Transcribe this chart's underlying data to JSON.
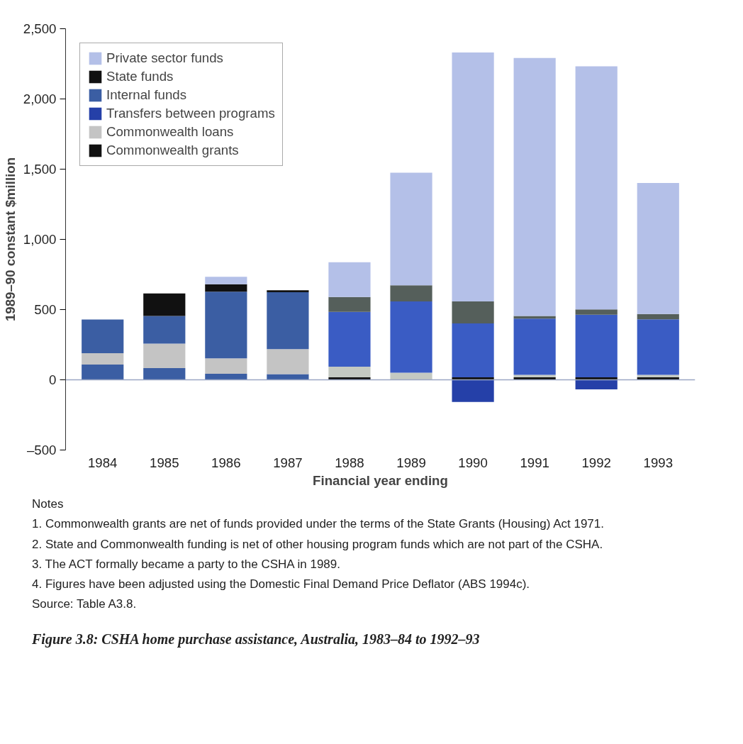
{
  "chart_data": {
    "type": "bar",
    "stacked": true,
    "title": "Figure 3.8: CSHA home purchase assistance, Australia, 1983–84 to 1992–93",
    "xlabel": "Financial year ending",
    "ylabel": "1989–90 constant $million",
    "categories": [
      "1984",
      "1985",
      "1986",
      "1987",
      "1988",
      "1989",
      "1990",
      "1991",
      "1992",
      "1993"
    ],
    "series": [
      {
        "name": "Commonwealth grants",
        "color": "#111111",
        "colors": [
          "#3b5ea3",
          "#3b5ea3",
          "#3b5ea3",
          "#3b5ea3",
          "#111111",
          "#111111",
          "#111111",
          "#111111",
          "#111111",
          "#111111"
        ],
        "values": [
          109,
          83,
          43,
          41,
          18,
          0,
          18,
          18,
          18,
          18
        ]
      },
      {
        "name": "Commonwealth loans",
        "color": "#c4c4c4",
        "colors": [
          "#c4c4c4",
          "#c4c4c4",
          "#c4c4c4",
          "#c4c4c4",
          "#c4c9c2",
          "#c4c9c2",
          "#c4c9c2",
          "#c4c9c2",
          "#c4c9c2",
          "#c4c9c2"
        ],
        "values": [
          81,
          174,
          110,
          178,
          75,
          51,
          0,
          17,
          0,
          17
        ]
      },
      {
        "name": "Transfers between programs",
        "color": "#2540a8",
        "colors": [
          "#2540a8",
          "#2540a8",
          "#2540a8",
          "#2540a8",
          "#2540a8",
          "#2540a8",
          "#2540a8",
          "#2540a8",
          "#2540a8",
          "#2540a8"
        ],
        "values": [
          0,
          0,
          0,
          0,
          0,
          0,
          -158,
          0,
          -68,
          0
        ]
      },
      {
        "name": "Internal funds",
        "color": "#3b5ea3",
        "colors": [
          "#3b5ea3",
          "#3b5ea3",
          "#3b5ea3",
          "#3b5ea3",
          "#3a5cc4",
          "#3a5cc4",
          "#3a5cc4",
          "#3a5cc4",
          "#3a5cc4",
          "#3a5cc4"
        ],
        "values": [
          239,
          197,
          474,
          405,
          391,
          507,
          383,
          401,
          446,
          396
        ]
      },
      {
        "name": "State funds",
        "color": "#111111",
        "colors": [
          "#111111",
          "#111111",
          "#111111",
          "#111111",
          "#555f5b",
          "#555f5b",
          "#555f5b",
          "#555f5b",
          "#555f5b",
          "#555f5b"
        ],
        "values": [
          0,
          161,
          53,
          13,
          106,
          115,
          157,
          19,
          37,
          38
        ]
      },
      {
        "name": "Private sector funds",
        "color": "#b4c0e8",
        "colors": [
          "#b4c0e8",
          "#b4c0e8",
          "#b4c0e8",
          "#b4c0e8",
          "#b4c0e8",
          "#b4c0e8",
          "#b4c0e8",
          "#b4c0e8",
          "#b4c0e8",
          "#b4c0e8"
        ],
        "values": [
          0,
          0,
          54,
          0,
          247,
          802,
          1773,
          1837,
          1731,
          932
        ]
      }
    ],
    "ylim": [
      -500,
      2500
    ],
    "yticks": [
      {
        "value": -500,
        "label": "–500"
      },
      0,
      {
        "value": 500,
        "label": "500"
      },
      {
        "value": 1000,
        "label": "1,000"
      },
      {
        "value": 1500,
        "label": "1,500"
      },
      {
        "value": 2000,
        "label": "2,000"
      },
      {
        "value": 2500,
        "label": "2,500"
      }
    ],
    "ref_lines": [
      {
        "axis": "y",
        "value": 0,
        "color": "#9aa6c4"
      }
    ],
    "legend": "top left",
    "grid": false,
    "annotations": [
      "Notes",
      "1. Commonwealth grants are net of funds provided under the terms of the State Grants (Housing) Act 1971.",
      "2. State and Commonwealth funding is net of other housing program funds which are not part of the CSHA.",
      "3. The ACT formally became a party to the CSHA in 1989.",
      "4. Figures have been adjusted using the Domestic Final Demand Price Deflator (ABS 1994c).",
      "Source: Table A3.8."
    ]
  }
}
